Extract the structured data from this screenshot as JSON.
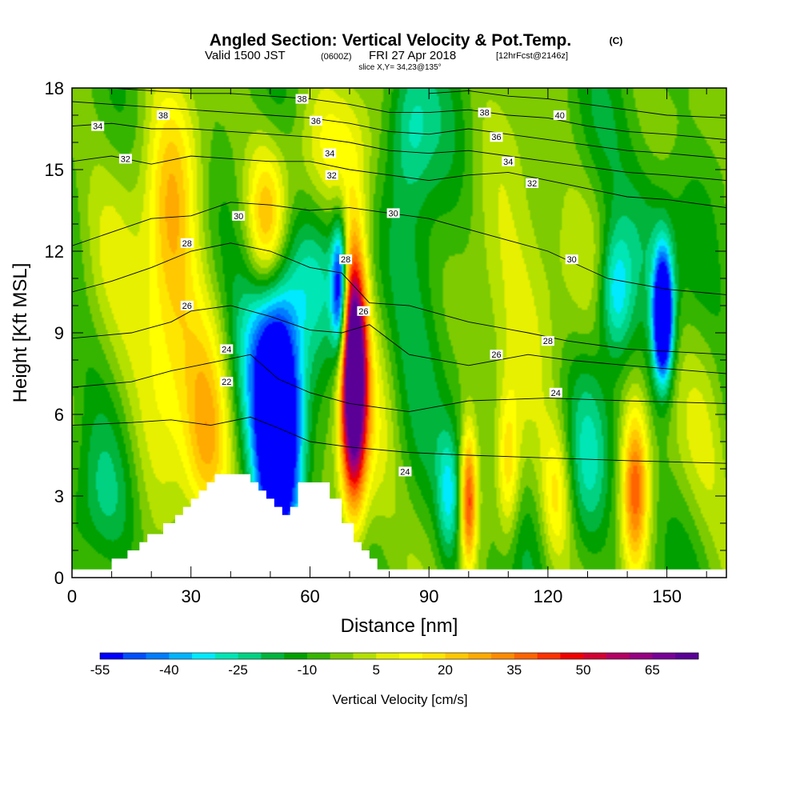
{
  "header": {
    "title_main": "Angled Section: Vertical Velocity & Pot.Temp.",
    "title_unit": "(C)",
    "valid_a": "Valid 1500 JST",
    "valid_b": "(0600Z)",
    "valid_c": "FRI 27 Apr 2018",
    "valid_d": "[12hrFcst@2146z]",
    "slice": "slice X,Y= 34,23@135°"
  },
  "chart_data": {
    "type": "heatmap",
    "xlabel": "Distance [nm]",
    "ylabel": "Height [Kft MSL]",
    "xlim": [
      0,
      165
    ],
    "ylim": [
      0,
      18
    ],
    "x_ticks": [
      "0",
      "30",
      "60",
      "90",
      "120",
      "150"
    ],
    "y_ticks": [
      "0",
      "3",
      "6",
      "9",
      "12",
      "15",
      "18"
    ],
    "colorbar": {
      "label": "Vertical Velocity [cm/s]",
      "range": [
        -55,
        75
      ],
      "step": 5,
      "tick_labels": [
        "-55",
        "-40",
        "-25",
        "-10",
        "5",
        "20",
        "35",
        "50",
        "65"
      ],
      "colors": [
        "#0000ff",
        "#0050ff",
        "#007dff",
        "#00b4ff",
        "#00eaff",
        "#00e6b4",
        "#00d282",
        "#00b43c",
        "#00a000",
        "#35b500",
        "#7dcb00",
        "#b4e100",
        "#e6f000",
        "#ffff00",
        "#ffe600",
        "#ffc800",
        "#ffaa00",
        "#ff8c00",
        "#ff6400",
        "#ff3200",
        "#f00000",
        "#d20032",
        "#b40064",
        "#960082",
        "#780096",
        "#5a0096"
      ]
    },
    "background_value": -7,
    "cells": [
      {
        "x": 52,
        "y": 5.2,
        "sx": 4,
        "sy": 3.2,
        "v": -75
      },
      {
        "x": 48,
        "y": 8.8,
        "sx": 6,
        "sy": 2.6,
        "v": -25
      },
      {
        "x": 71,
        "y": 7.5,
        "sx": 2.3,
        "sy": 3.2,
        "v": 110
      },
      {
        "x": 67.5,
        "y": 10.5,
        "sx": 1.4,
        "sy": 1.8,
        "v": -55
      },
      {
        "x": 76,
        "y": 5.5,
        "sx": 4,
        "sy": 5,
        "v": 10
      },
      {
        "x": 149,
        "y": 9.6,
        "sx": 1.7,
        "sy": 1.6,
        "v": -80
      },
      {
        "x": 137,
        "y": 10.5,
        "sx": 3,
        "sy": 1.7,
        "v": -30
      },
      {
        "x": 100,
        "y": 2.8,
        "sx": 1.4,
        "sy": 1.8,
        "v": 45
      },
      {
        "x": 95,
        "y": 3,
        "sx": 2,
        "sy": 1.6,
        "v": -24
      },
      {
        "x": 110,
        "y": 4,
        "sx": 2,
        "sy": 2,
        "v": 24
      },
      {
        "x": 142,
        "y": 3.3,
        "sx": 2.3,
        "sy": 2.2,
        "v": 42
      },
      {
        "x": 122,
        "y": 3,
        "sx": 2.5,
        "sy": 1.8,
        "v": 20
      },
      {
        "x": 130,
        "y": 4,
        "sx": 3.5,
        "sy": 2.5,
        "v": -14
      },
      {
        "x": 113,
        "y": 11,
        "sx": 10,
        "sy": 3,
        "v": 16
      },
      {
        "x": 25,
        "y": 13,
        "sx": 4.5,
        "sy": 3,
        "v": 28
      },
      {
        "x": 49,
        "y": 13,
        "sx": 3.5,
        "sy": 2,
        "v": 30
      },
      {
        "x": 30,
        "y": 9,
        "sx": 7,
        "sy": 2.5,
        "v": 14
      },
      {
        "x": 34,
        "y": 4.5,
        "sx": 4,
        "sy": 2.5,
        "v": 25
      },
      {
        "x": 20,
        "y": 6,
        "sx": 10,
        "sy": 3.5,
        "v": 10
      },
      {
        "x": 60,
        "y": 11,
        "sx": 5,
        "sy": 2,
        "v": -16
      },
      {
        "x": 88,
        "y": 11,
        "sx": 6,
        "sy": 3,
        "v": -14
      },
      {
        "x": 145,
        "y": 13,
        "sx": 5,
        "sy": 2,
        "v": -10
      },
      {
        "x": 63,
        "y": 15.5,
        "sx": 10,
        "sy": 2,
        "v": 14
      },
      {
        "x": 85,
        "y": 16.5,
        "sx": 4,
        "sy": 2,
        "v": -18
      },
      {
        "x": 13,
        "y": 15,
        "sx": 8,
        "sy": 3,
        "v": 8
      },
      {
        "x": 8,
        "y": 2.5,
        "sx": 6,
        "sy": 2,
        "v": -16
      },
      {
        "x": 160,
        "y": 4,
        "sx": 6,
        "sy": 3,
        "v": 8
      }
    ],
    "terrain_heights": [
      0.3,
      0.3,
      0.3,
      0.3,
      0.3,
      0.3,
      0.3,
      0.3,
      0.3,
      0.3,
      0.7,
      0.7,
      0.7,
      0.7,
      1.0,
      1.0,
      1.0,
      1.3,
      1.3,
      1.6,
      1.6,
      1.6,
      1.6,
      2.0,
      2.0,
      2.0,
      2.3,
      2.3,
      2.6,
      2.6,
      2.9,
      2.9,
      3.2,
      3.2,
      3.5,
      3.5,
      3.8,
      3.8,
      3.8,
      3.8,
      3.8,
      3.8,
      3.8,
      3.8,
      3.8,
      3.5,
      3.5,
      3.2,
      3.2,
      2.9,
      2.9,
      2.6,
      2.6,
      2.3,
      2.3,
      2.6,
      2.6,
      3.5,
      3.5,
      3.5,
      3.5,
      3.5,
      3.5,
      3.5,
      3.5,
      2.9,
      2.9,
      2.9,
      2.0,
      2.0,
      2.0,
      1.3,
      1.3,
      1.0,
      1.0,
      0.7,
      0.7,
      0.3,
      0.3,
      0.3,
      0.3,
      0.3,
      0.3,
      0.3,
      0.3,
      0.3,
      0.3,
      0.3,
      0.3,
      0.3,
      0.3,
      0.3,
      0.3,
      0.3,
      0.3,
      0.3,
      0.3,
      0.3,
      0.3,
      0.3,
      0.3,
      0.3,
      0.3,
      0.3,
      0.3,
      0.3,
      0.3,
      0.3,
      0.3,
      0.3,
      0.3,
      0.3,
      0.3,
      0.3,
      0.3,
      0.3,
      0.3,
      0.3,
      0.3,
      0.3,
      0.3,
      0.3,
      0.3,
      0.3,
      0.3,
      0.3,
      0.3,
      0.3,
      0.3,
      0.3,
      0.3,
      0.3,
      0.3,
      0.3,
      0.3,
      0.3,
      0.3,
      0.3,
      0.3,
      0.3,
      0.3,
      0.3,
      0.3,
      0.3,
      0.3,
      0.3,
      0.3,
      0.3,
      0.3,
      0.3,
      0.3,
      0.3,
      0.3,
      0.3,
      0.3,
      0.3,
      0.3,
      0.3,
      0.3,
      0.3,
      0.3,
      0.3,
      0.3,
      0.3,
      0.3,
      0.3,
      0.3,
      0.3,
      0.3,
      0.3,
      0.3,
      0.3
    ],
    "theta_contours": [
      {
        "level": 22,
        "x": [
          0,
          15,
          25,
          35,
          45,
          52,
          60,
          70,
          85,
          100,
          120,
          140,
          165
        ],
        "y": [
          5.6,
          5.7,
          5.8,
          5.6,
          5.9,
          5.5,
          5.0,
          4.8,
          4.6,
          4.5,
          4.4,
          4.3,
          4.2
        ]
      },
      {
        "level": 24,
        "x": [
          0,
          15,
          25,
          35,
          45,
          52,
          60,
          70,
          85,
          100,
          120,
          140,
          165
        ],
        "y": [
          7.0,
          7.2,
          7.6,
          7.9,
          8.2,
          7.3,
          6.8,
          6.4,
          6.1,
          6.5,
          6.6,
          6.5,
          6.4
        ]
      },
      {
        "level": 26,
        "x": [
          0,
          15,
          25,
          30,
          40,
          50,
          60,
          68,
          75,
          85,
          100,
          115,
          125,
          140,
          165
        ],
        "y": [
          8.8,
          9.0,
          9.4,
          9.8,
          10.0,
          9.6,
          9.1,
          9.0,
          9.3,
          8.2,
          7.8,
          8.2,
          8.0,
          7.8,
          7.5
        ]
      },
      {
        "level": 28,
        "x": [
          0,
          10,
          20,
          30,
          40,
          50,
          60,
          68,
          75,
          85,
          100,
          115,
          125,
          140,
          165
        ],
        "y": [
          10.5,
          10.9,
          11.4,
          12.0,
          12.3,
          12.0,
          11.4,
          11.2,
          10.1,
          10.0,
          9.4,
          9.0,
          8.7,
          8.4,
          8.2
        ]
      },
      {
        "level": 30,
        "x": [
          0,
          10,
          20,
          30,
          40,
          50,
          60,
          70,
          80,
          90,
          100,
          110,
          120,
          135,
          150,
          165
        ],
        "y": [
          12.2,
          12.7,
          13.2,
          13.3,
          13.8,
          13.7,
          13.5,
          13.6,
          13.4,
          13.2,
          12.8,
          12.4,
          12.0,
          11.0,
          10.6,
          10.4
        ]
      },
      {
        "level": 32,
        "x": [
          0,
          10,
          20,
          30,
          40,
          50,
          60,
          70,
          80,
          90,
          100,
          110,
          120,
          130,
          140,
          150,
          165
        ],
        "y": [
          15.3,
          15.5,
          15.2,
          15.5,
          15.4,
          15.3,
          15.3,
          15.0,
          14.8,
          14.6,
          14.8,
          14.9,
          14.6,
          14.3,
          14.0,
          13.9,
          13.6
        ]
      },
      {
        "level": 34,
        "x": [
          0,
          10,
          20,
          30,
          40,
          50,
          60,
          70,
          80,
          90,
          100,
          110,
          120,
          130,
          140,
          150,
          165
        ],
        "y": [
          16.6,
          16.7,
          16.5,
          16.5,
          16.4,
          16.3,
          16.2,
          16.0,
          15.7,
          15.6,
          15.7,
          15.5,
          15.3,
          15.1,
          14.9,
          14.8,
          14.6
        ]
      },
      {
        "level": 36,
        "x": [
          0,
          10,
          20,
          30,
          40,
          50,
          60,
          70,
          80,
          90,
          100,
          110,
          120,
          130,
          140,
          150,
          165
        ],
        "y": [
          17.5,
          17.4,
          17.3,
          17.2,
          17.1,
          17.0,
          16.9,
          16.7,
          16.4,
          16.3,
          16.5,
          16.3,
          16.1,
          15.9,
          15.7,
          15.6,
          15.4
        ]
      },
      {
        "level": 38,
        "x": [
          0,
          10,
          20,
          30,
          40,
          50,
          60,
          70,
          80,
          90,
          100,
          110,
          120,
          130,
          140,
          150,
          165
        ],
        "y": [
          18.1,
          18.0,
          17.9,
          17.8,
          17.8,
          17.7,
          17.6,
          17.4,
          17.1,
          17.1,
          17.2,
          17.0,
          16.9,
          16.6,
          16.4,
          16.3,
          16.1
        ]
      },
      {
        "level": 40,
        "x": [
          90,
          100,
          110,
          120,
          130,
          140,
          150,
          165
        ],
        "y": [
          17.8,
          17.9,
          17.7,
          17.6,
          17.4,
          17.2,
          17.0,
          16.9
        ]
      }
    ],
    "contour_labels": [
      {
        "text": "38",
        "x": 58,
        "y": 17.6
      },
      {
        "text": "38",
        "x": 23,
        "y": 17.0
      },
      {
        "text": "34",
        "x": 6.5,
        "y": 16.6
      },
      {
        "text": "36",
        "x": 61.5,
        "y": 16.8
      },
      {
        "text": "34",
        "x": 65,
        "y": 15.6
      },
      {
        "text": "32",
        "x": 13.5,
        "y": 15.4
      },
      {
        "text": "32",
        "x": 65.5,
        "y": 14.8
      },
      {
        "text": "30",
        "x": 42,
        "y": 13.3
      },
      {
        "text": "30",
        "x": 81,
        "y": 13.4
      },
      {
        "text": "28",
        "x": 29,
        "y": 12.3
      },
      {
        "text": "28",
        "x": 69,
        "y": 11.7
      },
      {
        "text": "26",
        "x": 29,
        "y": 10.0
      },
      {
        "text": "26",
        "x": 73.5,
        "y": 9.8
      },
      {
        "text": "24",
        "x": 39,
        "y": 8.4
      },
      {
        "text": "22",
        "x": 39,
        "y": 7.2
      },
      {
        "text": "24",
        "x": 84,
        "y": 3.9
      },
      {
        "text": "38",
        "x": 104,
        "y": 17.1
      },
      {
        "text": "40",
        "x": 123,
        "y": 17.0
      },
      {
        "text": "36",
        "x": 107,
        "y": 16.2
      },
      {
        "text": "34",
        "x": 110,
        "y": 15.3
      },
      {
        "text": "32",
        "x": 116,
        "y": 14.5
      },
      {
        "text": "30",
        "x": 126,
        "y": 11.7
      },
      {
        "text": "28",
        "x": 120,
        "y": 8.7
      },
      {
        "text": "26",
        "x": 107,
        "y": 8.2
      },
      {
        "text": "24",
        "x": 122,
        "y": 6.8
      }
    ]
  }
}
